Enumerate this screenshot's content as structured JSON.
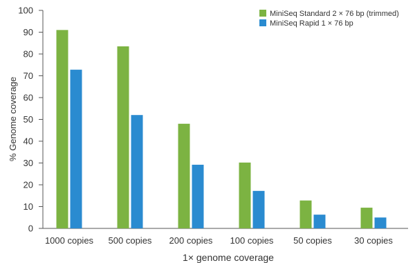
{
  "chart_data": {
    "type": "bar",
    "categories": [
      "1000 copies",
      "500 copies",
      "200 copies",
      "100 copies",
      "50 copies",
      "30 copies"
    ],
    "series": [
      {
        "name": "MiniSeq Standard 2 × 76 bp (trimmed)",
        "color": "#7cb342",
        "values": [
          91,
          83.5,
          48,
          30.2,
          12.8,
          9.5
        ]
      },
      {
        "name": "MiniSeq Rapid 1 × 76 bp",
        "color": "#2a8bd0",
        "values": [
          72.8,
          52,
          29.2,
          17.2,
          6.3,
          5
        ]
      }
    ],
    "xlabel": "1× genome coverage",
    "ylabel": "% Genome coverage",
    "ylim": [
      0,
      100
    ],
    "yticks": [
      0,
      10,
      20,
      30,
      40,
      50,
      60,
      70,
      80,
      90,
      100
    ],
    "legend_position": "top-right",
    "grid": false
  }
}
